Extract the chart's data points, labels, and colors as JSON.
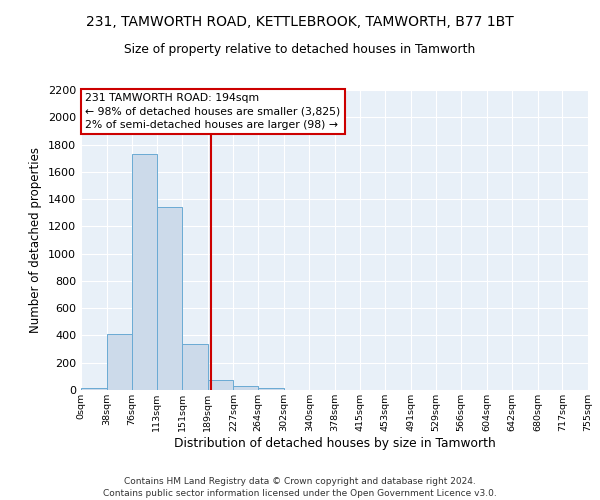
{
  "title1": "231, TAMWORTH ROAD, KETTLEBROOK, TAMWORTH, B77 1BT",
  "title2": "Size of property relative to detached houses in Tamworth",
  "xlabel": "Distribution of detached houses by size in Tamworth",
  "ylabel": "Number of detached properties",
  "bar_edges": [
    0,
    38,
    76,
    113,
    151,
    189,
    227,
    264,
    302,
    340,
    378,
    415,
    453,
    491,
    529,
    566,
    604,
    642,
    680,
    717,
    755
  ],
  "bar_heights": [
    15,
    410,
    1730,
    1345,
    340,
    75,
    30,
    18,
    0,
    0,
    0,
    0,
    0,
    0,
    0,
    0,
    0,
    0,
    0,
    0
  ],
  "bar_color": "#ccdaea",
  "bar_edgecolor": "#6aaad4",
  "vline_x": 194,
  "vline_color": "#cc0000",
  "annotation_text": "231 TAMWORTH ROAD: 194sqm\n← 98% of detached houses are smaller (3,825)\n2% of semi-detached houses are larger (98) →",
  "annotation_box_facecolor": "#ffffff",
  "annotation_box_edgecolor": "#cc0000",
  "ylim": [
    0,
    2200
  ],
  "yticks": [
    0,
    200,
    400,
    600,
    800,
    1000,
    1200,
    1400,
    1600,
    1800,
    2000,
    2200
  ],
  "xlim": [
    0,
    755
  ],
  "bg_color": "#e8f0f8",
  "footer_line1": "Contains HM Land Registry data © Crown copyright and database right 2024.",
  "footer_line2": "Contains public sector information licensed under the Open Government Licence v3.0.",
  "tick_labels": [
    "0sqm",
    "38sqm",
    "76sqm",
    "113sqm",
    "151sqm",
    "189sqm",
    "227sqm",
    "264sqm",
    "302sqm",
    "340sqm",
    "378sqm",
    "415sqm",
    "453sqm",
    "491sqm",
    "529sqm",
    "566sqm",
    "604sqm",
    "642sqm",
    "680sqm",
    "717sqm",
    "755sqm"
  ]
}
